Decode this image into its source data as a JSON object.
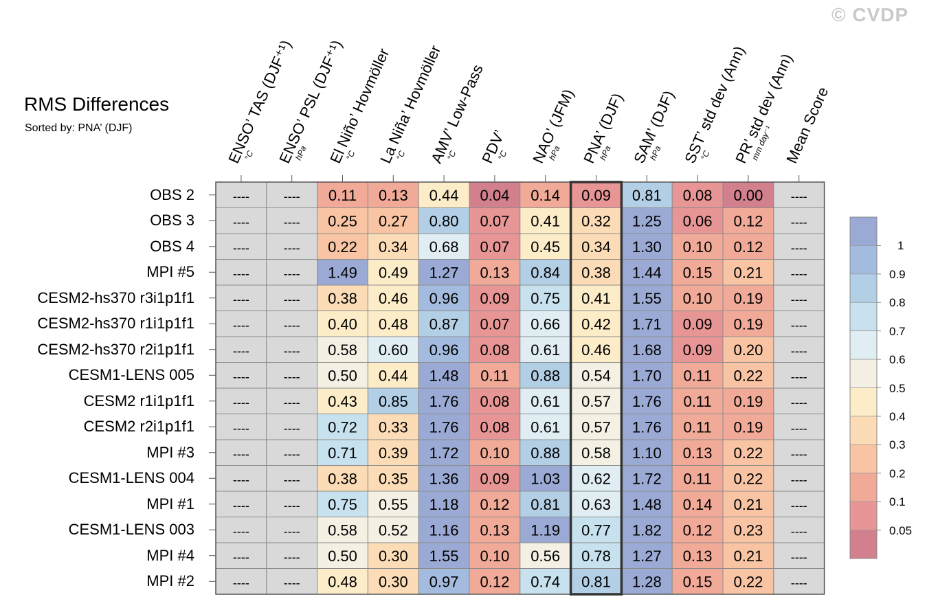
{
  "title": "RMS Differences",
  "subtitle": "Sorted by: PNA’ (DJF)",
  "watermark": "© CVDP",
  "chart_data": {
    "type": "heatmap",
    "title": "RMS Differences",
    "sorted_by": "PNA’ (DJF)",
    "highlighted_column": "PNA’ (DJF)",
    "missing_label": "----",
    "columns": [
      {
        "label": "ENSO’ TAS (DJF⁺¹)",
        "unit": "°C"
      },
      {
        "label": "ENSO’ PSL (DJF⁺¹)",
        "unit": "hPa"
      },
      {
        "label": "El Niño’ Hovmöller",
        "unit": "°C"
      },
      {
        "label": "La Niña’ Hovmöller",
        "unit": "°C"
      },
      {
        "label": "AMV’ Low-Pass",
        "unit": "°C"
      },
      {
        "label": "PDV’",
        "unit": "°C"
      },
      {
        "label": "NAO’ (JFM)",
        "unit": "hPa"
      },
      {
        "label": "PNA’ (DJF)",
        "unit": "hPa"
      },
      {
        "label": "SAM’ (DJF)",
        "unit": "hPa"
      },
      {
        "label": "SST’ std dev (Ann)",
        "unit": "°C"
      },
      {
        "label": "PR’ std dev (Ann)",
        "unit": "mm day⁻¹"
      },
      {
        "label": "Mean Score",
        "unit": ""
      }
    ],
    "rows": [
      {
        "name": "OBS 2",
        "values": [
          null,
          null,
          0.11,
          0.13,
          0.44,
          0.04,
          0.14,
          0.09,
          0.81,
          0.08,
          0.0,
          null
        ]
      },
      {
        "name": "OBS 3",
        "values": [
          null,
          null,
          0.25,
          0.27,
          0.8,
          0.07,
          0.41,
          0.32,
          1.25,
          0.06,
          0.12,
          null
        ]
      },
      {
        "name": "OBS 4",
        "values": [
          null,
          null,
          0.22,
          0.34,
          0.68,
          0.07,
          0.45,
          0.34,
          1.3,
          0.1,
          0.12,
          null
        ]
      },
      {
        "name": "MPI #5",
        "values": [
          null,
          null,
          1.49,
          0.49,
          1.27,
          0.13,
          0.84,
          0.38,
          1.44,
          0.15,
          0.21,
          null
        ]
      },
      {
        "name": "CESM2-hs370 r3i1p1f1",
        "values": [
          null,
          null,
          0.38,
          0.46,
          0.96,
          0.09,
          0.75,
          0.41,
          1.55,
          0.1,
          0.19,
          null
        ]
      },
      {
        "name": "CESM2-hs370 r1i1p1f1",
        "values": [
          null,
          null,
          0.4,
          0.48,
          0.87,
          0.07,
          0.66,
          0.42,
          1.71,
          0.09,
          0.19,
          null
        ]
      },
      {
        "name": "CESM2-hs370 r2i1p1f1",
        "values": [
          null,
          null,
          0.58,
          0.6,
          0.96,
          0.08,
          0.61,
          0.46,
          1.68,
          0.09,
          0.2,
          null
        ]
      },
      {
        "name": "CESM1-LENS 005",
        "values": [
          null,
          null,
          0.5,
          0.44,
          1.48,
          0.11,
          0.88,
          0.54,
          1.7,
          0.11,
          0.22,
          null
        ]
      },
      {
        "name": "CESM2 r1i1p1f1",
        "values": [
          null,
          null,
          0.43,
          0.85,
          1.76,
          0.08,
          0.61,
          0.57,
          1.76,
          0.11,
          0.19,
          null
        ]
      },
      {
        "name": "CESM2 r2i1p1f1",
        "values": [
          null,
          null,
          0.72,
          0.33,
          1.76,
          0.08,
          0.61,
          0.57,
          1.76,
          0.11,
          0.19,
          null
        ]
      },
      {
        "name": "MPI #3",
        "values": [
          null,
          null,
          0.71,
          0.39,
          1.72,
          0.1,
          0.88,
          0.58,
          1.1,
          0.13,
          0.22,
          null
        ]
      },
      {
        "name": "CESM1-LENS 004",
        "values": [
          null,
          null,
          0.38,
          0.35,
          1.36,
          0.09,
          1.03,
          0.62,
          1.72,
          0.11,
          0.22,
          null
        ]
      },
      {
        "name": "MPI #1",
        "values": [
          null,
          null,
          0.75,
          0.55,
          1.18,
          0.12,
          0.81,
          0.63,
          1.48,
          0.14,
          0.21,
          null
        ]
      },
      {
        "name": "CESM1-LENS 003",
        "values": [
          null,
          null,
          0.58,
          0.52,
          1.16,
          0.13,
          1.19,
          0.77,
          1.82,
          0.12,
          0.23,
          null
        ]
      },
      {
        "name": "MPI #4",
        "values": [
          null,
          null,
          0.5,
          0.3,
          1.55,
          0.1,
          0.56,
          0.78,
          1.27,
          0.13,
          0.21,
          null
        ]
      },
      {
        "name": "MPI #2",
        "values": [
          null,
          null,
          0.48,
          0.3,
          0.97,
          0.12,
          0.74,
          0.81,
          1.28,
          0.15,
          0.22,
          null
        ]
      }
    ],
    "colorbar": {
      "levels": [
        0.05,
        0.1,
        0.2,
        0.3,
        0.4,
        0.5,
        0.6,
        0.7,
        0.8,
        0.9,
        1
      ],
      "tick_labels": [
        "1",
        "0.9",
        "0.8",
        "0.7",
        "0.6",
        "0.5",
        "0.4",
        "0.3",
        "0.2",
        "0.1",
        "0.05"
      ],
      "colors_low_to_high": [
        "#d27f8e",
        "#e79595",
        "#f1aa98",
        "#f8c4a3",
        "#fbdcb6",
        "#fcecc8",
        "#f4f1e4",
        "#e0eef4",
        "#c7e2ee",
        "#b3cfe6",
        "#a3bbde",
        "#9aaad4"
      ],
      "missing_color": "#d9d9d9"
    }
  }
}
